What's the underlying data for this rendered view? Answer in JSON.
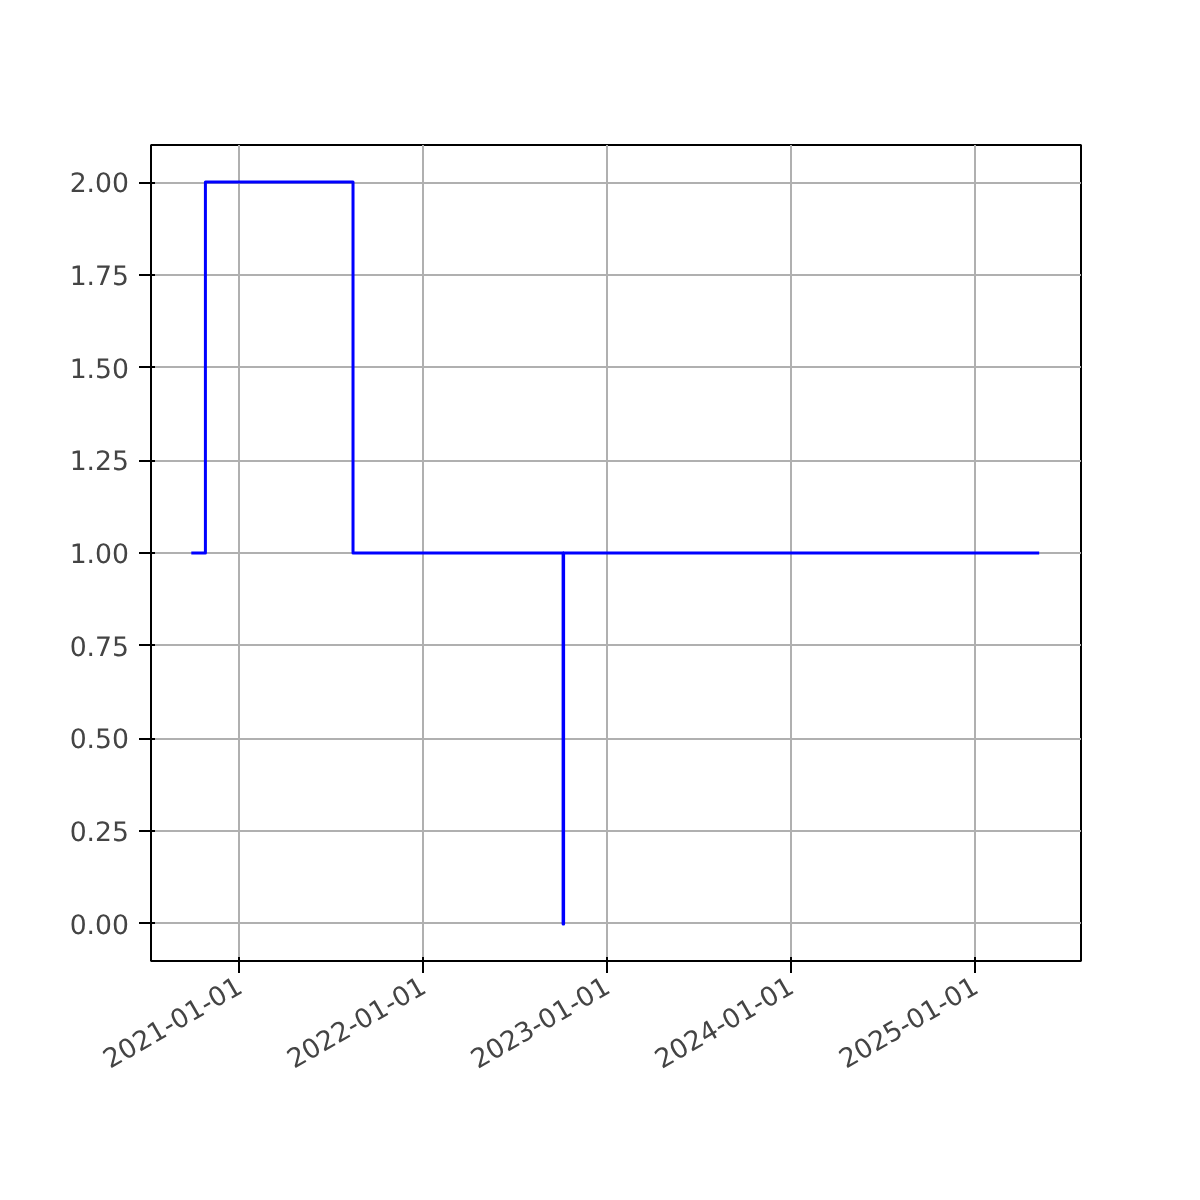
{
  "chart_data": {
    "type": "step",
    "x": [
      "2020-09-28",
      "2020-10-26",
      "2021-08-15",
      "2022-10-06",
      "2022-10-07",
      "2025-05-08"
    ],
    "series": [
      {
        "color": "#0000ff",
        "values": [
          1,
          2,
          1,
          0,
          1,
          1
        ]
      }
    ],
    "xlim": [
      "2020-07-10",
      "2025-07-30"
    ],
    "xticks": [
      {
        "value": "2021-01-01",
        "label": "2021-01-01"
      },
      {
        "value": "2022-01-01",
        "label": "2022-01-01"
      },
      {
        "value": "2023-01-01",
        "label": "2023-01-01"
      },
      {
        "value": "2024-01-01",
        "label": "2024-01-01"
      },
      {
        "value": "2025-01-01",
        "label": "2025-01-01"
      }
    ],
    "ylim": [
      -0.1,
      2.1
    ],
    "yticks": [
      {
        "value": 0,
        "label": "0.00"
      },
      {
        "value": 0.25,
        "label": "0.25"
      },
      {
        "value": 0.5,
        "label": "0.50"
      },
      {
        "value": 0.75,
        "label": "0.75"
      },
      {
        "value": 1,
        "label": "1.00"
      },
      {
        "value": 1.25,
        "label": "1.25"
      },
      {
        "value": 1.5,
        "label": "1.50"
      },
      {
        "value": 1.75,
        "label": "1.75"
      },
      {
        "value": 2,
        "label": "2.00"
      }
    ],
    "grid": true,
    "line_style": "solid"
  }
}
